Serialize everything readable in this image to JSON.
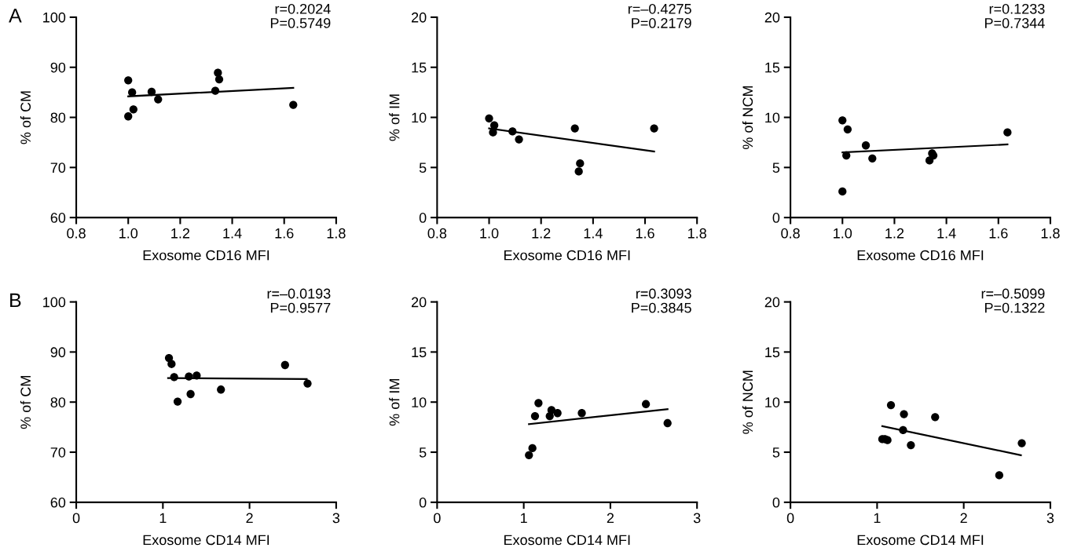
{
  "chart_data": [
    {
      "type": "scatter",
      "xlabel": "Exosome CD16 MFI",
      "ylabel": "% of CM",
      "xlim": [
        0.8,
        1.8
      ],
      "xticks": [
        {
          "value": 0.8,
          "label": "0.8"
        },
        {
          "value": 1.0,
          "label": "1.0"
        },
        {
          "value": 1.2,
          "label": "1.2"
        },
        {
          "value": 1.4,
          "label": "1.4"
        },
        {
          "value": 1.6,
          "label": "1.6"
        },
        {
          "value": 1.8,
          "label": "1.8"
        }
      ],
      "ylim": [
        60,
        100
      ],
      "yticks": [
        60,
        70,
        80,
        90,
        100
      ],
      "annotations": [
        "A",
        "r=0.2024\nP=0.5749"
      ],
      "series": [
        {
          "marker": "circle",
          "color": "#000000",
          "x": [
            1.0,
            1.015,
            1.02,
            1.0,
            1.09,
            1.115,
            1.335,
            1.345,
            1.35,
            1.635
          ],
          "values": [
            87.4,
            85.0,
            81.6,
            80.2,
            85.1,
            83.6,
            85.3,
            88.9,
            87.6,
            82.5
          ]
        },
        {
          "type": "line",
          "marker": "none",
          "color": "#000000",
          "line_style": "solid",
          "x": [
            1.0,
            1.635
          ],
          "values": [
            84.2,
            85.9
          ]
        }
      ]
    },
    {
      "type": "scatter",
      "xlabel": "Exosome CD16 MFI",
      "ylabel": "% of IM",
      "xlim": [
        0.8,
        1.8
      ],
      "xticks": [
        {
          "value": 0.8,
          "label": "0.8"
        },
        {
          "value": 1.0,
          "label": "1.0"
        },
        {
          "value": 1.2,
          "label": "1.2"
        },
        {
          "value": 1.4,
          "label": "1.4"
        },
        {
          "value": 1.6,
          "label": "1.6"
        },
        {
          "value": 1.8,
          "label": "1.8"
        }
      ],
      "ylim": [
        0,
        20
      ],
      "yticks": [
        0,
        5,
        10,
        15,
        20
      ],
      "annotations": [
        "r=–0.4275\nP=0.2179"
      ],
      "series": [
        {
          "marker": "circle",
          "color": "#000000",
          "x": [
            1.0,
            1.02,
            1.015,
            1.09,
            1.115,
            1.33,
            1.35,
            1.345,
            1.635
          ],
          "values": [
            9.9,
            9.2,
            8.5,
            8.6,
            7.8,
            8.9,
            5.4,
            4.6,
            8.9
          ]
        },
        {
          "type": "line",
          "marker": "none",
          "color": "#000000",
          "line_style": "solid",
          "x": [
            1.0,
            1.635
          ],
          "values": [
            8.9,
            6.6
          ]
        }
      ]
    },
    {
      "type": "scatter",
      "xlabel": "Exosome CD16 MFI",
      "ylabel": "% of NCM",
      "xlim": [
        0.8,
        1.8
      ],
      "xticks": [
        {
          "value": 0.8,
          "label": "0.8"
        },
        {
          "value": 1.0,
          "label": "1.0"
        },
        {
          "value": 1.2,
          "label": "1.2"
        },
        {
          "value": 1.4,
          "label": "1.4"
        },
        {
          "value": 1.6,
          "label": "1.6"
        },
        {
          "value": 1.8,
          "label": "1.8"
        }
      ],
      "ylim": [
        0,
        20
      ],
      "yticks": [
        0,
        5,
        10,
        15,
        20
      ],
      "annotations": [
        "r=0.1233\nP=0.7344"
      ],
      "series": [
        {
          "marker": "circle",
          "color": "#000000",
          "x": [
            1.0,
            1.02,
            1.015,
            1.09,
            1.115,
            1.335,
            1.35,
            1.345,
            1.0,
            1.635
          ],
          "values": [
            9.7,
            8.8,
            6.2,
            7.2,
            5.9,
            5.7,
            6.2,
            6.4,
            2.6,
            8.5
          ]
        },
        {
          "type": "line",
          "marker": "none",
          "color": "#000000",
          "line_style": "solid",
          "x": [
            1.0,
            1.635
          ],
          "values": [
            6.5,
            7.3
          ]
        }
      ]
    },
    {
      "type": "scatter",
      "xlabel": "Exosome CD14 MFI",
      "ylabel": "% of CM",
      "xlim": [
        0,
        3
      ],
      "xticks": [
        0,
        1,
        2,
        3
      ],
      "ylim": [
        60,
        100
      ],
      "yticks": [
        60,
        70,
        80,
        90,
        100
      ],
      "annotations": [
        "B",
        "r=–0.0193\nP=0.9577"
      ],
      "series": [
        {
          "marker": "circle",
          "color": "#000000",
          "x": [
            1.07,
            1.1,
            1.13,
            1.17,
            1.3,
            1.39,
            1.32,
            1.67,
            2.41,
            2.67
          ],
          "values": [
            88.8,
            87.6,
            85.0,
            80.1,
            85.1,
            85.3,
            81.6,
            82.5,
            87.4,
            83.7
          ]
        },
        {
          "type": "line",
          "marker": "none",
          "color": "#000000",
          "line_style": "solid",
          "x": [
            1.06,
            2.66
          ],
          "values": [
            84.8,
            84.6
          ]
        }
      ]
    },
    {
      "type": "scatter",
      "xlabel": "Exosome CD14 MFI",
      "ylabel": "% of IM",
      "xlim": [
        0,
        3
      ],
      "xticks": [
        0,
        1,
        2,
        3
      ],
      "ylim": [
        0,
        20
      ],
      "yticks": [
        0,
        5,
        10,
        15,
        20
      ],
      "annotations": [
        "r=0.3093\nP=0.3845"
      ],
      "series": [
        {
          "marker": "circle",
          "color": "#000000",
          "x": [
            1.06,
            1.1,
            1.13,
            1.17,
            1.3,
            1.32,
            1.39,
            1.67,
            2.41,
            2.66
          ],
          "values": [
            4.7,
            5.4,
            8.6,
            9.9,
            8.6,
            9.2,
            8.9,
            8.9,
            9.8,
            7.9
          ]
        },
        {
          "type": "line",
          "marker": "none",
          "color": "#000000",
          "line_style": "solid",
          "x": [
            1.06,
            2.66
          ],
          "values": [
            7.8,
            9.3
          ]
        }
      ]
    },
    {
      "type": "scatter",
      "xlabel": "Exosome CD14 MFI",
      "ylabel": "% of NCM",
      "xlim": [
        0,
        3
      ],
      "xticks": [
        0,
        1,
        2,
        3
      ],
      "ylim": [
        0,
        20
      ],
      "yticks": [
        0,
        5,
        10,
        15,
        20
      ],
      "annotations": [
        "r=–0.5099\nP=0.1322"
      ],
      "series": [
        {
          "marker": "circle",
          "color": "#000000",
          "x": [
            1.06,
            1.09,
            1.12,
            1.16,
            1.31,
            1.3,
            1.39,
            1.67,
            2.41,
            2.67
          ],
          "values": [
            6.3,
            6.3,
            6.2,
            9.7,
            8.8,
            7.2,
            5.7,
            8.5,
            2.7,
            5.9
          ]
        },
        {
          "type": "line",
          "marker": "none",
          "color": "#000000",
          "line_style": "solid",
          "x": [
            1.06,
            2.66
          ],
          "values": [
            7.6,
            4.7
          ]
        }
      ]
    }
  ]
}
